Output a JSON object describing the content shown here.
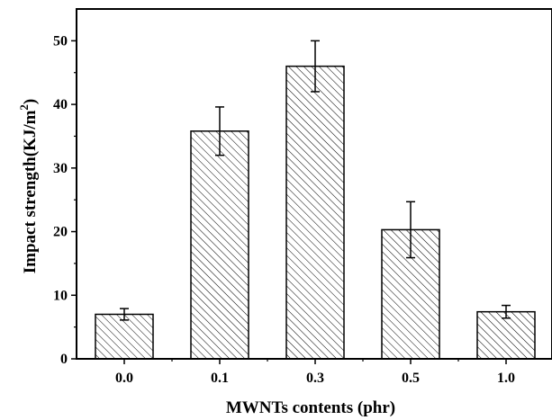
{
  "chart_data": {
    "type": "bar",
    "categories": [
      "0.0",
      "0.1",
      "0.3",
      "0.5",
      "1.0"
    ],
    "values": [
      7.0,
      35.8,
      46.0,
      20.3,
      7.4
    ],
    "error": [
      0.9,
      3.8,
      4.0,
      4.4,
      1.0
    ],
    "xlabel": "MWNTs contents (phr)",
    "ylabel": {
      "main": "Impact strength(KJ/m",
      "sup": "2",
      "close": ")"
    },
    "ylim": [
      0,
      55
    ],
    "yticks": [
      0,
      10,
      20,
      30,
      40,
      50
    ],
    "bar_fill": "hatched",
    "grid": false,
    "colors": {
      "stroke": "#000000",
      "background": "#ffffff"
    }
  }
}
